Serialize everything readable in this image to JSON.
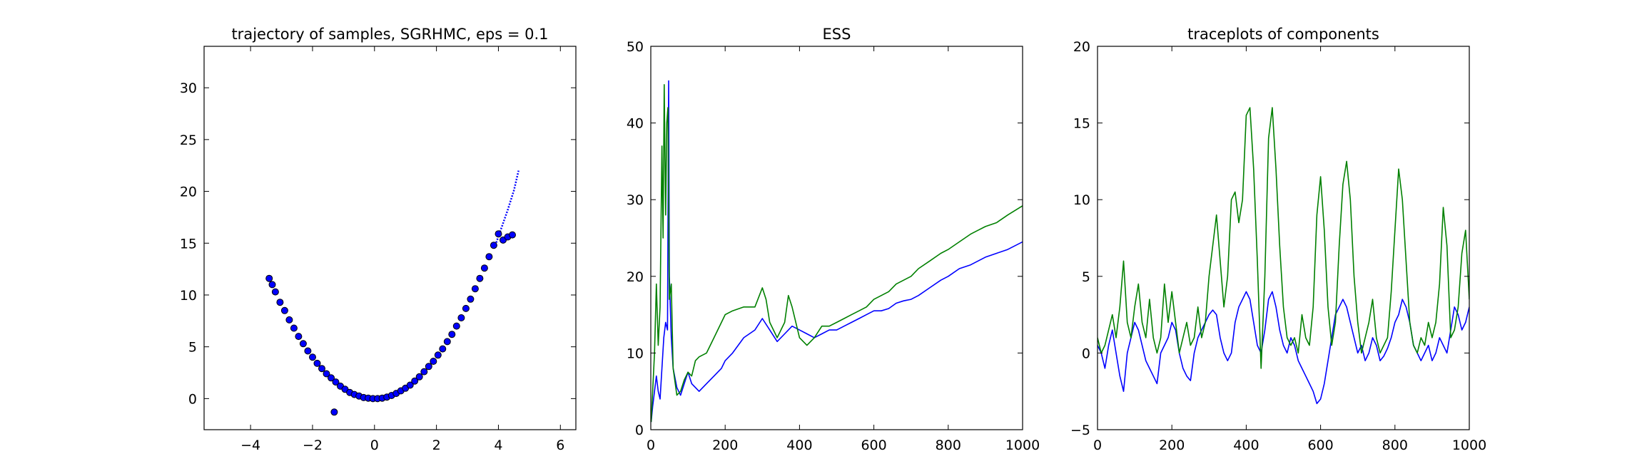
{
  "chart_data": [
    {
      "type": "scatter",
      "title": "trajectory of samples, SGRHMC, eps = 0.1",
      "xlabel": "",
      "ylabel": "",
      "xlim": [
        -5.5,
        6.5
      ],
      "ylim": [
        -3,
        34
      ],
      "xticks": [
        -4,
        -2,
        0,
        2,
        4,
        6
      ],
      "yticks": [
        0,
        5,
        10,
        15,
        20,
        25,
        30
      ],
      "xtick_labels": [
        "−4",
        "−2",
        "0",
        "2",
        "4",
        "6"
      ],
      "ytick_labels": [
        "0",
        "5",
        "10",
        "15",
        "20",
        "25",
        "30"
      ],
      "series": [
        {
          "color": "#0000ff",
          "points": [
            [
              -3.4,
              11.6
            ],
            [
              -3.3,
              11.0
            ],
            [
              -3.2,
              10.3
            ],
            [
              -3.05,
              9.3
            ],
            [
              -2.9,
              8.5
            ],
            [
              -2.75,
              7.6
            ],
            [
              -2.6,
              6.8
            ],
            [
              -2.45,
              6.0
            ],
            [
              -2.3,
              5.3
            ],
            [
              -2.15,
              4.6
            ],
            [
              -2.0,
              4.0
            ],
            [
              -1.85,
              3.4
            ],
            [
              -1.7,
              2.9
            ],
            [
              -1.55,
              2.4
            ],
            [
              -1.4,
              2.0
            ],
            [
              -1.25,
              1.6
            ],
            [
              -1.1,
              1.2
            ],
            [
              -0.95,
              0.9
            ],
            [
              -0.8,
              0.6
            ],
            [
              -0.65,
              0.4
            ],
            [
              -0.5,
              0.25
            ],
            [
              -0.35,
              0.1
            ],
            [
              -0.2,
              0.05
            ],
            [
              -0.05,
              0.0
            ],
            [
              0.1,
              0.0
            ],
            [
              0.25,
              0.05
            ],
            [
              0.4,
              0.15
            ],
            [
              0.55,
              0.3
            ],
            [
              0.7,
              0.5
            ],
            [
              0.85,
              0.75
            ],
            [
              1.0,
              1.0
            ],
            [
              1.15,
              1.3
            ],
            [
              1.3,
              1.7
            ],
            [
              1.45,
              2.1
            ],
            [
              1.6,
              2.6
            ],
            [
              1.75,
              3.1
            ],
            [
              1.9,
              3.6
            ],
            [
              2.05,
              4.2
            ],
            [
              2.2,
              4.8
            ],
            [
              2.35,
              5.5
            ],
            [
              2.5,
              6.2
            ],
            [
              2.65,
              7.0
            ],
            [
              2.8,
              7.8
            ],
            [
              2.95,
              8.7
            ],
            [
              3.1,
              9.6
            ],
            [
              3.25,
              10.6
            ],
            [
              3.4,
              11.6
            ],
            [
              3.55,
              12.6
            ],
            [
              3.7,
              13.7
            ],
            [
              3.85,
              14.8
            ],
            [
              4.0,
              15.9
            ],
            [
              4.15,
              15.3
            ],
            [
              4.3,
              15.6
            ],
            [
              4.45,
              15.8
            ],
            [
              -1.3,
              -1.3
            ]
          ]
        }
      ],
      "line_tail": [
        [
          3.9,
          14.8
        ],
        [
          4.1,
          16.5
        ],
        [
          4.3,
          18.2
        ],
        [
          4.5,
          20.1
        ],
        [
          4.65,
          22.0
        ]
      ]
    },
    {
      "type": "line",
      "title": "ESS",
      "xlabel": "",
      "ylabel": "",
      "xlim": [
        0,
        1000
      ],
      "ylim": [
        0,
        50
      ],
      "xticks": [
        0,
        200,
        400,
        600,
        800,
        1000
      ],
      "yticks": [
        0,
        10,
        20,
        30,
        40,
        50
      ],
      "xtick_labels": [
        "0",
        "200",
        "400",
        "600",
        "800",
        "1000"
      ],
      "ytick_labels": [
        "0",
        "10",
        "20",
        "30",
        "40",
        "50"
      ],
      "series": [
        {
          "color": "#0000ff",
          "x": [
            1,
            5,
            10,
            15,
            20,
            25,
            30,
            35,
            40,
            45,
            48,
            50,
            55,
            60,
            70,
            80,
            90,
            100,
            110,
            120,
            130,
            150,
            170,
            190,
            200,
            220,
            250,
            280,
            300,
            320,
            340,
            360,
            380,
            400,
            420,
            440,
            460,
            480,
            500,
            520,
            540,
            560,
            580,
            600,
            620,
            640,
            660,
            680,
            700,
            720,
            750,
            780,
            800,
            830,
            860,
            880,
            900,
            930,
            960,
            1000
          ],
          "values": [
            1,
            3,
            5,
            7,
            5,
            4,
            8,
            12,
            14,
            13,
            45.5,
            20,
            12,
            8,
            5.5,
            4.5,
            6,
            7.5,
            6,
            5.5,
            5,
            6,
            7,
            8,
            9,
            10,
            12,
            13,
            14.5,
            13,
            11.5,
            12.5,
            13.5,
            13,
            12.5,
            12,
            12.5,
            13,
            13,
            13.5,
            14,
            14.5,
            15,
            15.5,
            15.5,
            15.8,
            16.5,
            16.8,
            17,
            17.5,
            18.5,
            19.5,
            20,
            21,
            21.5,
            22,
            22.5,
            23,
            23.5,
            24.5
          ]
        },
        {
          "color": "#008000",
          "x": [
            1,
            5,
            10,
            15,
            20,
            25,
            30,
            33,
            36,
            40,
            43,
            46,
            50,
            55,
            60,
            70,
            80,
            90,
            100,
            110,
            120,
            130,
            150,
            170,
            190,
            200,
            220,
            250,
            280,
            300,
            310,
            320,
            340,
            360,
            370,
            380,
            400,
            420,
            440,
            460,
            480,
            500,
            520,
            540,
            560,
            580,
            600,
            620,
            640,
            660,
            680,
            700,
            720,
            750,
            780,
            800,
            830,
            860,
            880,
            900,
            930,
            960,
            1000
          ],
          "values": [
            1,
            5,
            10,
            19,
            11,
            16,
            37,
            25,
            45,
            28,
            40,
            42,
            17,
            19,
            8,
            4.5,
            5,
            6.5,
            7.5,
            7,
            9,
            9.5,
            10,
            12,
            14,
            15,
            15.5,
            16,
            16,
            18.5,
            17,
            14,
            12,
            14,
            17.5,
            16,
            12,
            11,
            12,
            13.5,
            13.5,
            14,
            14.5,
            15,
            15.5,
            16,
            17,
            17.5,
            18,
            19,
            19.5,
            20,
            21,
            22,
            23,
            23.5,
            24.5,
            25.5,
            26,
            26.5,
            27,
            28,
            29.2
          ]
        }
      ]
    },
    {
      "type": "line",
      "title": "traceplots of components",
      "xlabel": "",
      "ylabel": "",
      "xlim": [
        0,
        1000
      ],
      "ylim": [
        -5,
        20
      ],
      "xticks": [
        0,
        200,
        400,
        600,
        800,
        1000
      ],
      "yticks": [
        -5,
        0,
        5,
        10,
        15,
        20
      ],
      "xtick_labels": [
        "0",
        "200",
        "400",
        "600",
        "800",
        "1000"
      ],
      "ytick_labels": [
        "−5",
        "0",
        "5",
        "10",
        "15",
        "20"
      ],
      "series": [
        {
          "color": "#0000ff",
          "x": [
            0,
            10,
            20,
            30,
            40,
            50,
            60,
            70,
            80,
            90,
            100,
            110,
            120,
            130,
            140,
            150,
            160,
            170,
            180,
            190,
            200,
            210,
            220,
            230,
            240,
            250,
            260,
            270,
            280,
            290,
            300,
            310,
            320,
            330,
            340,
            350,
            360,
            370,
            380,
            390,
            400,
            410,
            420,
            430,
            440,
            450,
            460,
            470,
            480,
            490,
            500,
            510,
            520,
            530,
            540,
            550,
            560,
            570,
            580,
            590,
            600,
            610,
            620,
            630,
            640,
            650,
            660,
            670,
            680,
            690,
            700,
            710,
            720,
            730,
            740,
            750,
            760,
            770,
            780,
            790,
            800,
            810,
            820,
            830,
            840,
            850,
            860,
            870,
            880,
            890,
            900,
            910,
            920,
            930,
            940,
            950,
            960,
            970,
            980,
            990,
            1000
          ],
          "values": [
            0.5,
            0,
            -1,
            0.5,
            1.5,
            0,
            -1.5,
            -2.5,
            0,
            1,
            2,
            1.5,
            0.5,
            -0.5,
            -1,
            -1.5,
            -2,
            0,
            0.5,
            1,
            2,
            1.5,
            0,
            -1,
            -1.5,
            -1.8,
            0,
            1,
            1.5,
            2,
            2.5,
            2.8,
            2.5,
            1,
            0,
            -0.5,
            0,
            2,
            3,
            3.5,
            4,
            3.5,
            2,
            0.5,
            0,
            1.5,
            3.5,
            4,
            3,
            1.5,
            0.5,
            0,
            1,
            0.5,
            -0.5,
            -1,
            -1.5,
            -2,
            -2.5,
            -3.3,
            -3,
            -2,
            -0.5,
            1,
            2.5,
            3,
            3.5,
            3,
            2,
            1,
            0,
            0.5,
            -0.5,
            0,
            1,
            0.5,
            -0.5,
            -0.2,
            0.3,
            1,
            2,
            2.5,
            3.5,
            3,
            2,
            0.5,
            0,
            -0.5,
            0,
            0.5,
            -0.5,
            0,
            1,
            0.5,
            0,
            1.5,
            3,
            2.5,
            1.5,
            2,
            3
          ]
        },
        {
          "color": "#008000",
          "x": [
            0,
            10,
            20,
            30,
            40,
            50,
            60,
            70,
            80,
            90,
            100,
            110,
            120,
            130,
            140,
            150,
            160,
            170,
            180,
            190,
            200,
            210,
            220,
            230,
            240,
            250,
            260,
            270,
            280,
            290,
            300,
            310,
            320,
            330,
            340,
            350,
            360,
            370,
            380,
            390,
            400,
            410,
            420,
            430,
            440,
            450,
            460,
            470,
            480,
            490,
            500,
            510,
            520,
            530,
            540,
            550,
            560,
            570,
            580,
            590,
            600,
            610,
            620,
            630,
            640,
            650,
            660,
            670,
            680,
            690,
            700,
            710,
            720,
            730,
            740,
            750,
            760,
            770,
            780,
            790,
            800,
            810,
            820,
            830,
            840,
            850,
            860,
            870,
            880,
            890,
            900,
            910,
            920,
            930,
            940,
            950,
            960,
            970,
            980,
            990,
            1000
          ],
          "values": [
            1,
            0,
            0.5,
            1.5,
            2.5,
            1,
            3,
            6,
            2,
            1,
            3,
            4.5,
            2,
            1,
            3.5,
            1,
            0,
            1,
            4.5,
            2,
            4,
            2,
            0,
            1,
            2,
            0.5,
            1,
            3,
            1,
            2,
            5,
            7,
            9,
            6,
            3,
            5,
            10,
            10.5,
            8.5,
            10,
            15.5,
            16,
            12,
            6,
            -1,
            5,
            14,
            16,
            12,
            7,
            3,
            1,
            0.5,
            1,
            0,
            2.5,
            1,
            0.5,
            3,
            9,
            11.5,
            8,
            3,
            0.5,
            2,
            7,
            11,
            12.5,
            10,
            5,
            2,
            0,
            1,
            2,
            3.5,
            1,
            0,
            0.5,
            1,
            4,
            8,
            12,
            10,
            6,
            2,
            0.5,
            0,
            1,
            0.5,
            2,
            1,
            2,
            4.5,
            9.5,
            7,
            1,
            1.5,
            3,
            6.5,
            8,
            3.5
          ]
        }
      ]
    }
  ]
}
